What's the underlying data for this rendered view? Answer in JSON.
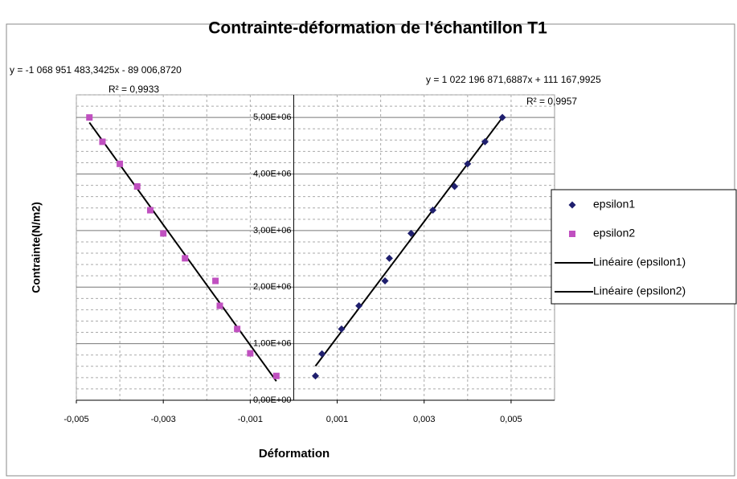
{
  "chart_data": {
    "type": "scatter",
    "title": "Contrainte-déformation de l'échantillon T1",
    "xlabel": "Déformation",
    "ylabel": "Contrainte(N/m2)",
    "xlim": [
      -0.005,
      0.006
    ],
    "ylim": [
      0,
      5400000
    ],
    "xticks": [
      {
        "value": -0.005,
        "label": "-0,005"
      },
      {
        "value": -0.003,
        "label": "-0,003"
      },
      {
        "value": -0.001,
        "label": "-0,001"
      },
      {
        "value": 0.001,
        "label": "0,001"
      },
      {
        "value": 0.003,
        "label": "0,003"
      },
      {
        "value": 0.005,
        "label": "0,005"
      }
    ],
    "xminorticks": [
      -0.004,
      -0.002,
      0.002,
      0.004
    ],
    "yticks": [
      {
        "value": 0,
        "label": "0,00E+00"
      },
      {
        "value": 1000000,
        "label": "1,00E+06"
      },
      {
        "value": 2000000,
        "label": "2,00E+06"
      },
      {
        "value": 3000000,
        "label": "3,00E+06"
      },
      {
        "value": 4000000,
        "label": "4,00E+06"
      },
      {
        "value": 5000000,
        "label": "5,00E+06"
      }
    ],
    "yminorticks": [
      200000,
      400000,
      600000,
      800000,
      1200000,
      1400000,
      1600000,
      1800000,
      2200000,
      2400000,
      2600000,
      2800000,
      3200000,
      3400000,
      3600000,
      3800000,
      4200000,
      4400000,
      4600000,
      4800000,
      5200000,
      5400000
    ],
    "grid": true,
    "legend": "right",
    "series": [
      {
        "name": "epsilon1",
        "color": "#1f1f6e",
        "marker": "diamond",
        "x": [
          0.0005,
          0.00065,
          0.0011,
          0.0015,
          0.0021,
          0.0022,
          0.0027,
          0.0032,
          0.0037,
          0.004,
          0.0044,
          0.0048
        ],
        "values": [
          430000,
          820000,
          1260000,
          1670000,
          2110000,
          2510000,
          2950000,
          3360000,
          3780000,
          4180000,
          4570000,
          5000000
        ],
        "trendline": {
          "name": "Linéaire (epsilon1)",
          "color": "#000000",
          "equation": "y = 1 022 196 871,6887x + 111 167,9925",
          "r2": "R² = 0,9957"
        }
      },
      {
        "name": "epsilon2",
        "color": "#c050c0",
        "marker": "square",
        "x": [
          -0.0047,
          -0.0044,
          -0.004,
          -0.0036,
          -0.0033,
          -0.003,
          -0.0025,
          -0.0018,
          -0.0017,
          -0.0013,
          -0.001,
          -0.0004
        ],
        "values": [
          5000000,
          4570000,
          4180000,
          3780000,
          3360000,
          2950000,
          2510000,
          2110000,
          1670000,
          1260000,
          830000,
          430000
        ],
        "trendline": {
          "name": "Linéaire (epsilon2)",
          "color": "#000000",
          "equation": "y = -1 068 951 483,3425x - 89 006,8720",
          "r2": "R² = 0,9933"
        }
      }
    ]
  }
}
